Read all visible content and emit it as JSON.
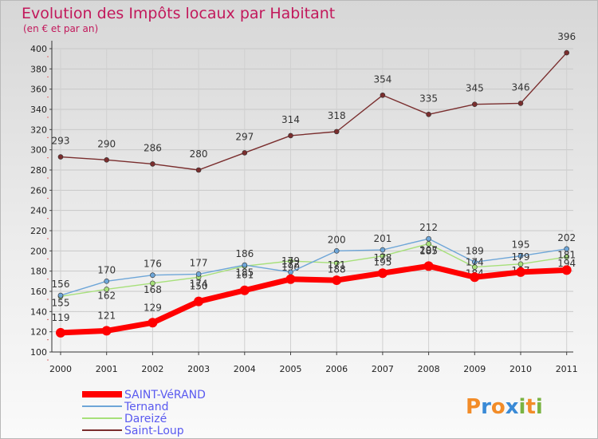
{
  "chart_data": {
    "type": "line",
    "title": "Evolution des Impôts locaux par Habitant",
    "subtitle": "(en € et par an)",
    "xlabel": "",
    "ylabel": "",
    "ylim": [
      100,
      400
    ],
    "yticks": [
      100,
      120,
      140,
      160,
      180,
      200,
      220,
      240,
      260,
      280,
      300,
      320,
      340,
      360,
      380,
      400
    ],
    "x": [
      "2000",
      "2001",
      "2002",
      "2003",
      "2004",
      "2005",
      "2006",
      "2007",
      "2008",
      "2009",
      "2010",
      "2011"
    ],
    "series": [
      {
        "name": "Saint-Loup",
        "color": "#7a2e2e",
        "values": [
          293,
          290,
          286,
          280,
          297,
          314,
          318,
          354,
          335,
          345,
          346,
          396
        ]
      },
      {
        "name": "Dareizé",
        "color": "#a7e07a",
        "values": [
          155,
          162,
          168,
          174,
          185,
          190,
          188,
          195,
          207,
          184,
          187,
          194
        ]
      },
      {
        "name": "Ternand",
        "color": "#6ea6d8",
        "values": [
          156,
          170,
          176,
          177,
          186,
          179,
          200,
          201,
          212,
          189,
          195,
          202
        ]
      },
      {
        "name": "SAINT-VéRAND",
        "color": "#ff0000",
        "values": [
          119,
          121,
          129,
          150,
          161,
          172,
          171,
          178,
          185,
          174,
          179,
          181
        ]
      }
    ],
    "legend": [
      "SAINT-VéRAND",
      "Ternand",
      "Dareizé",
      "Saint-Loup"
    ],
    "legend_position": "bottom-left"
  },
  "logo": {
    "text": "Proxiti"
  }
}
